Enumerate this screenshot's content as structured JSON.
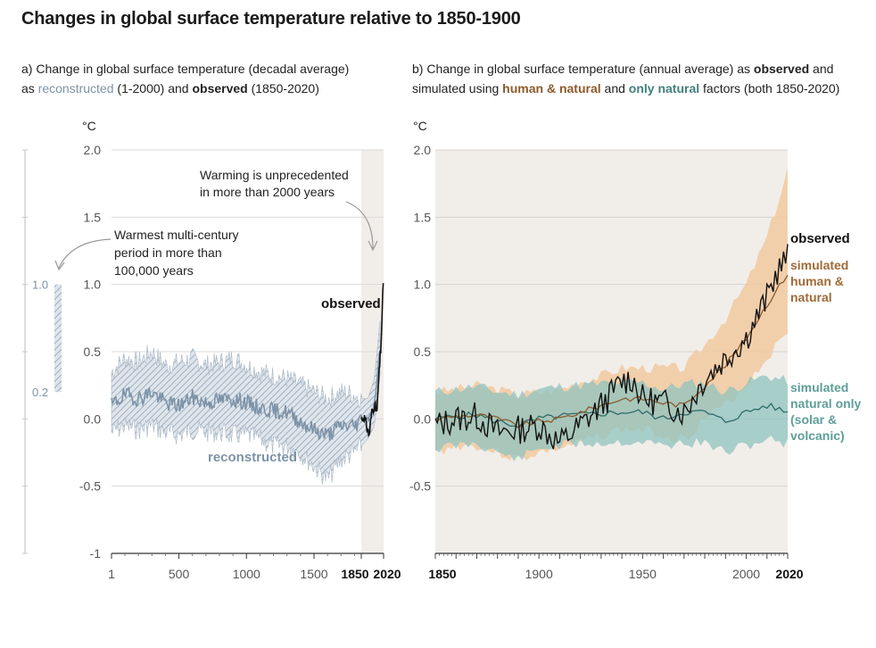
{
  "title": "Changes in global surface temperature relative to 1850-1900",
  "panel_a": {
    "subtitle_pre": "a) Change in global surface temperature (decadal average)",
    "subtitle_as": "as",
    "subtitle_reconstructed": "reconstructed",
    "subtitle_mid": "(1-2000) and",
    "subtitle_observed": "observed",
    "subtitle_post": "(1850-2020)",
    "unit": "°C",
    "side_bar_labels": [
      "1.0",
      "0.2"
    ],
    "annotation_warmest": [
      "Warmest multi-century",
      "period in more than",
      "100,000 years"
    ],
    "annotation_warming": [
      "Warming is unprecedented",
      "in more than 2000 years"
    ],
    "label_observed": "observed",
    "label_reconstructed": "reconstructed"
  },
  "panel_b": {
    "subtitle_pre": "b) Change in global surface temperature (annual average) as",
    "subtitle_observed": "observed",
    "subtitle_and": "and",
    "subtitle_simulated": "simulated using",
    "subtitle_human": "human & natural",
    "subtitle_and2": "and",
    "subtitle_natural": "only natural",
    "subtitle_post": "factors (both 1850-2020)",
    "unit": "°C",
    "label_observed": "observed",
    "label_human": [
      "simulated",
      "human &",
      "natural"
    ],
    "label_natural": [
      "simulated",
      "natural only",
      "(solar &",
      "volcanic)"
    ]
  },
  "colors": {
    "reconstructed": "#7d93a8",
    "observed": "#111111",
    "human_natural": "#8c5a2b",
    "human_band": "#f2c9a0",
    "natural": "#2f6b68",
    "natural_band": "#8fc3bf",
    "shade": "#f1eeea"
  },
  "chart_data": [
    {
      "type": "line",
      "title": "",
      "ylabel": "°C",
      "xlim": [
        1,
        2020
      ],
      "ylim": [
        -1,
        2
      ],
      "x_ticks": [
        "1",
        "500",
        "1000",
        "1500",
        "1850",
        "2020"
      ],
      "y_ticks": [
        "2.0",
        "1.5",
        "1.0",
        "0.5",
        "0.0",
        "-0.5",
        "-1"
      ],
      "series": [
        {
          "name": "reconstructed",
          "x": [
            1,
            100,
            200,
            300,
            400,
            500,
            600,
            700,
            800,
            900,
            1000,
            1100,
            1200,
            1300,
            1400,
            1500,
            1600,
            1700,
            1800,
            1850,
            1900,
            1950,
            2000
          ],
          "y": [
            0.1,
            0.18,
            0.15,
            0.2,
            0.12,
            0.1,
            0.16,
            0.12,
            0.14,
            0.15,
            0.12,
            0.08,
            0.06,
            0.05,
            -0.02,
            -0.08,
            -0.12,
            -0.05,
            -0.05,
            0.0,
            0.0,
            0.1,
            0.6
          ],
          "lower": [
            -0.1,
            -0.05,
            -0.08,
            -0.05,
            -0.1,
            -0.12,
            -0.08,
            -0.1,
            -0.1,
            -0.12,
            -0.12,
            -0.15,
            -0.2,
            -0.2,
            -0.25,
            -0.35,
            -0.45,
            -0.3,
            -0.25,
            -0.2,
            -0.15,
            -0.05,
            0.4
          ],
          "upper": [
            0.35,
            0.45,
            0.42,
            0.5,
            0.4,
            0.42,
            0.45,
            0.4,
            0.42,
            0.45,
            0.4,
            0.35,
            0.32,
            0.3,
            0.25,
            0.2,
            0.15,
            0.2,
            0.18,
            0.15,
            0.15,
            0.3,
            0.8
          ]
        },
        {
          "name": "observed",
          "x": [
            1850,
            1870,
            1890,
            1910,
            1930,
            1950,
            1960,
            1970,
            1980,
            1990,
            2000,
            2010,
            2020
          ],
          "y": [
            0.0,
            0.02,
            -0.05,
            -0.12,
            0.05,
            0.1,
            0.08,
            0.05,
            0.25,
            0.4,
            0.55,
            0.8,
            1.09
          ]
        }
      ]
    },
    {
      "type": "line",
      "title": "",
      "ylabel": "°C",
      "xlim": [
        1850,
        2020
      ],
      "ylim": [
        -1,
        2
      ],
      "x_ticks": [
        "1850",
        "1900",
        "1950",
        "2000",
        "2020"
      ],
      "y_ticks": [
        "2.0",
        "1.5",
        "1.0",
        "0.5",
        "0.0",
        "-0.5"
      ],
      "series": [
        {
          "name": "observed",
          "x": [
            1850,
            1860,
            1870,
            1880,
            1890,
            1900,
            1910,
            1920,
            1930,
            1940,
            1945,
            1950,
            1960,
            1970,
            1980,
            1990,
            2000,
            2010,
            2015,
            2020
          ],
          "y": [
            -0.05,
            0.0,
            0.02,
            -0.1,
            -0.08,
            -0.05,
            -0.18,
            -0.05,
            0.1,
            0.28,
            0.3,
            0.15,
            0.12,
            0.05,
            0.3,
            0.45,
            0.6,
            0.9,
            1.1,
            1.2
          ]
        },
        {
          "name": "simulated human & natural",
          "x": [
            1850,
            1860,
            1870,
            1880,
            1890,
            1900,
            1910,
            1920,
            1930,
            1940,
            1950,
            1960,
            1970,
            1980,
            1990,
            2000,
            2010,
            2020
          ],
          "y": [
            0.0,
            0.02,
            0.03,
            0.0,
            -0.05,
            -0.02,
            0.0,
            0.05,
            0.1,
            0.15,
            0.15,
            0.12,
            0.1,
            0.25,
            0.4,
            0.6,
            0.85,
            1.08
          ],
          "lower": [
            -0.25,
            -0.2,
            -0.2,
            -0.25,
            -0.3,
            -0.25,
            -0.22,
            -0.18,
            -0.12,
            -0.08,
            -0.08,
            -0.12,
            -0.15,
            0.0,
            0.1,
            0.25,
            0.45,
            0.65
          ],
          "upper": [
            0.2,
            0.22,
            0.25,
            0.22,
            0.18,
            0.2,
            0.22,
            0.28,
            0.32,
            0.38,
            0.38,
            0.38,
            0.38,
            0.55,
            0.75,
            1.0,
            1.35,
            1.85
          ]
        },
        {
          "name": "simulated natural only",
          "x": [
            1850,
            1860,
            1870,
            1880,
            1890,
            1900,
            1910,
            1920,
            1930,
            1940,
            1950,
            1960,
            1970,
            1980,
            1990,
            2000,
            2010,
            2020
          ],
          "y": [
            0.0,
            0.02,
            0.03,
            -0.02,
            -0.05,
            0.0,
            0.02,
            0.03,
            0.04,
            0.05,
            0.05,
            0.0,
            0.05,
            0.05,
            -0.02,
            0.05,
            0.1,
            0.05
          ],
          "lower": [
            -0.22,
            -0.2,
            -0.18,
            -0.25,
            -0.3,
            -0.22,
            -0.2,
            -0.18,
            -0.18,
            -0.17,
            -0.17,
            -0.2,
            -0.18,
            -0.18,
            -0.25,
            -0.2,
            -0.15,
            -0.18
          ],
          "upper": [
            0.2,
            0.22,
            0.24,
            0.2,
            0.18,
            0.22,
            0.24,
            0.25,
            0.26,
            0.27,
            0.27,
            0.22,
            0.26,
            0.27,
            0.2,
            0.27,
            0.32,
            0.28
          ]
        }
      ]
    }
  ]
}
